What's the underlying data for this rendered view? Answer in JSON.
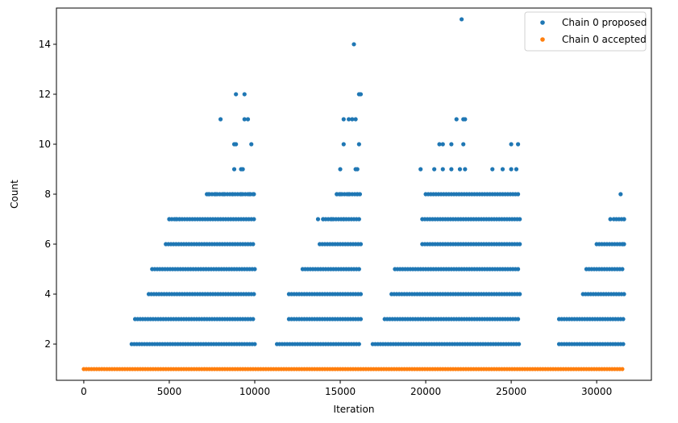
{
  "chart_data": {
    "type": "scatter",
    "title": "",
    "xlabel": "Iteration",
    "ylabel": "Count",
    "xlim": [
      -1600,
      33200
    ],
    "ylim": [
      0.55,
      15.45
    ],
    "xticks": [
      0,
      5000,
      10000,
      15000,
      20000,
      25000,
      30000
    ],
    "yticks": [
      2,
      4,
      6,
      8,
      10,
      12,
      14
    ],
    "legend_position": "top-right",
    "grid": false,
    "series": [
      {
        "name": "Chain 0 proposed",
        "color": "#1f77b4",
        "bands": [
          {
            "y": 2,
            "x": [
              [
                2800,
                10000
              ],
              [
                11300,
                16200
              ],
              [
                16900,
                25500
              ],
              [
                27800,
                31600
              ]
            ]
          },
          {
            "y": 3,
            "x": [
              [
                3000,
                10000
              ],
              [
                12000,
                16200
              ],
              [
                17600,
                25500
              ],
              [
                27800,
                31600
              ]
            ]
          },
          {
            "y": 4,
            "x": [
              [
                3800,
                10000
              ],
              [
                12000,
                16200
              ],
              [
                18000,
                25500
              ],
              [
                29200,
                31600
              ]
            ]
          },
          {
            "y": 5,
            "x": [
              [
                4000,
                10000
              ],
              [
                12800,
                16200
              ],
              [
                18200,
                25500
              ],
              [
                29400,
                31600
              ]
            ]
          },
          {
            "y": 6,
            "x": [
              [
                4800,
                10000
              ],
              [
                13800,
                16200
              ],
              [
                19800,
                25500
              ],
              [
                30000,
                31600
              ]
            ]
          },
          {
            "y": 7,
            "x": [
              [
                5000,
                10000
              ],
              [
                14000,
                16200
              ],
              [
                19800,
                25500
              ],
              [
                31000,
                31600
              ]
            ]
          },
          {
            "y": 8,
            "x": [
              [
                7200,
                10000
              ],
              [
                14800,
                16200
              ],
              [
                20000,
                25500
              ]
            ]
          }
        ],
        "points": [
          {
            "x": 5000,
            "y": 7
          },
          {
            "x": 5400,
            "y": 7
          },
          {
            "x": 5600,
            "y": 7
          },
          {
            "x": 7300,
            "y": 8
          },
          {
            "x": 7700,
            "y": 8
          },
          {
            "x": 8200,
            "y": 8
          },
          {
            "x": 8700,
            "y": 8
          },
          {
            "x": 9200,
            "y": 8
          },
          {
            "x": 9700,
            "y": 8
          },
          {
            "x": 9950,
            "y": 8
          },
          {
            "x": 8800,
            "y": 9
          },
          {
            "x": 9200,
            "y": 9
          },
          {
            "x": 9300,
            "y": 9
          },
          {
            "x": 8000,
            "y": 11
          },
          {
            "x": 9400,
            "y": 11
          },
          {
            "x": 9600,
            "y": 11
          },
          {
            "x": 8800,
            "y": 10
          },
          {
            "x": 8900,
            "y": 10
          },
          {
            "x": 9800,
            "y": 10
          },
          {
            "x": 8900,
            "y": 12
          },
          {
            "x": 9400,
            "y": 12
          },
          {
            "x": 13700,
            "y": 7
          },
          {
            "x": 14000,
            "y": 7
          },
          {
            "x": 14500,
            "y": 7
          },
          {
            "x": 15200,
            "y": 7
          },
          {
            "x": 14800,
            "y": 8
          },
          {
            "x": 15000,
            "y": 8
          },
          {
            "x": 15500,
            "y": 8
          },
          {
            "x": 16000,
            "y": 8
          },
          {
            "x": 15000,
            "y": 9
          },
          {
            "x": 15900,
            "y": 9
          },
          {
            "x": 16000,
            "y": 9
          },
          {
            "x": 15200,
            "y": 10
          },
          {
            "x": 16100,
            "y": 10
          },
          {
            "x": 15200,
            "y": 11
          },
          {
            "x": 15500,
            "y": 11
          },
          {
            "x": 15700,
            "y": 11
          },
          {
            "x": 15900,
            "y": 11
          },
          {
            "x": 16100,
            "y": 12
          },
          {
            "x": 16200,
            "y": 12
          },
          {
            "x": 15800,
            "y": 14
          },
          {
            "x": 19700,
            "y": 9
          },
          {
            "x": 20500,
            "y": 9
          },
          {
            "x": 21000,
            "y": 9
          },
          {
            "x": 21500,
            "y": 9
          },
          {
            "x": 22000,
            "y": 9
          },
          {
            "x": 22300,
            "y": 9
          },
          {
            "x": 23900,
            "y": 9
          },
          {
            "x": 24500,
            "y": 9
          },
          {
            "x": 25000,
            "y": 9
          },
          {
            "x": 25300,
            "y": 9
          },
          {
            "x": 20800,
            "y": 10
          },
          {
            "x": 21000,
            "y": 10
          },
          {
            "x": 21500,
            "y": 10
          },
          {
            "x": 22200,
            "y": 10
          },
          {
            "x": 25000,
            "y": 10
          },
          {
            "x": 25400,
            "y": 10
          },
          {
            "x": 21800,
            "y": 11
          },
          {
            "x": 22200,
            "y": 11
          },
          {
            "x": 22300,
            "y": 11
          },
          {
            "x": 22100,
            "y": 15
          },
          {
            "x": 31500,
            "y": 6
          },
          {
            "x": 31600,
            "y": 6
          },
          {
            "x": 31600,
            "y": 7
          },
          {
            "x": 30800,
            "y": 7
          },
          {
            "x": 31400,
            "y": 8
          }
        ]
      },
      {
        "name": "Chain 0 accepted",
        "color": "#ff7f0e",
        "bands": [
          {
            "y": 1,
            "x": [
              [
                0,
                31600
              ]
            ]
          }
        ],
        "points": []
      }
    ]
  }
}
